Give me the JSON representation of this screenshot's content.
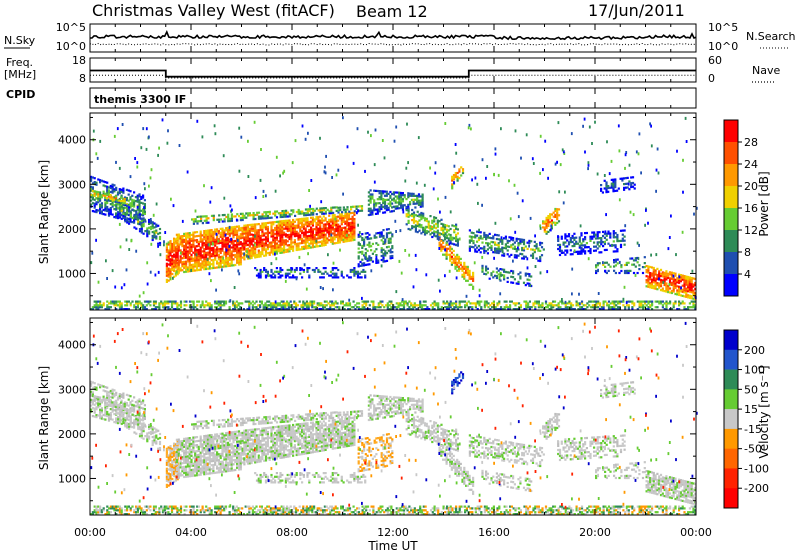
{
  "header": {
    "site": "Christmas Valley West (fitACF)",
    "beam": "Beam 12",
    "date": "17/Jun/2011"
  },
  "panels": {
    "nsky_label": "N.Sky",
    "nsearch_label": "N.Search",
    "freq_label_1": "Freq.",
    "freq_label_2": "[MHz]",
    "nave_label": "Nave",
    "cpid_label": "CPID",
    "cpid_value": "themis 3300 IF"
  },
  "colors": {
    "power": [
      "#0000ff",
      "#1f4fb0",
      "#2e8b57",
      "#66cc33",
      "#f0d000",
      "#ff9900",
      "#ff5000",
      "#ff0000"
    ],
    "velocity": [
      "#0000cc",
      "#2255cc",
      "#2e8b57",
      "#66cc33",
      "#c8c8c8",
      "#ff9900",
      "#ff6600",
      "#ff2200",
      "#ff0000"
    ]
  },
  "chart_data": [
    {
      "type": "line",
      "name": "nsky-nsearch",
      "left_ticks": [
        "10^5",
        "10^0"
      ],
      "right_ticks": [
        "10^5",
        "10^0"
      ],
      "series": [
        {
          "name": "N.Sky",
          "style": "solid"
        },
        {
          "name": "N.Search",
          "style": "dotted"
        }
      ]
    },
    {
      "type": "line",
      "name": "freq-nave",
      "left_ticks": [
        18,
        8
      ],
      "right_ticks": [
        60,
        0
      ],
      "x_hours": [
        0,
        3.0,
        3.0,
        15.0,
        15.0,
        24
      ],
      "freq_mhz": [
        12.8,
        12.8,
        10.2,
        10.2,
        12.8,
        12.8
      ],
      "nave": [
        17,
        17,
        10,
        10,
        17,
        17
      ]
    },
    {
      "type": "heatmap",
      "name": "power",
      "xlabel": "",
      "ylabel": "Slant Range [km]",
      "y_ticks": [
        1000,
        2000,
        3000,
        4000
      ],
      "ylim": [
        180,
        4600
      ],
      "colorbar_label": "Power [dB]",
      "colorbar_ticks": [
        4,
        8,
        12,
        16,
        20,
        24,
        28
      ],
      "colorbar_range": [
        0,
        32
      ]
    },
    {
      "type": "heatmap",
      "name": "velocity",
      "xlabel": "Time UT",
      "ylabel": "Slant Range [km]",
      "y_ticks": [
        1000,
        2000,
        3000,
        4000
      ],
      "ylim": [
        180,
        4600
      ],
      "colorbar_label": "Velocity [m s⁻¹]",
      "colorbar_ticks": [
        200,
        100,
        50,
        15,
        -15,
        -50,
        -100,
        -200
      ],
      "x_ticks": [
        "00:00",
        "04:00",
        "08:00",
        "12:00",
        "16:00",
        "20:00",
        "00:00"
      ],
      "xlim_hours": [
        0,
        24
      ]
    }
  ]
}
